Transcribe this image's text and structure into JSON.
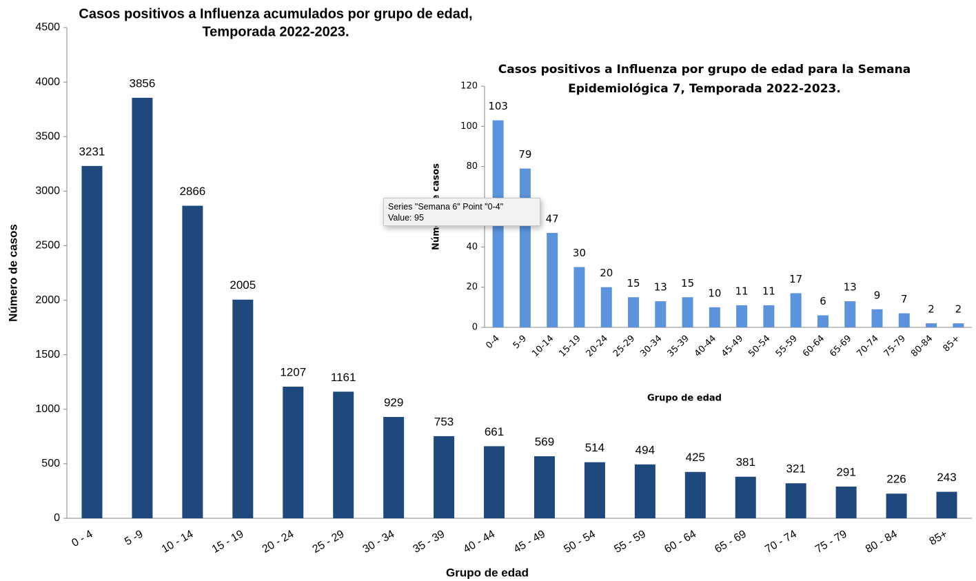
{
  "chart_data": [
    {
      "type": "bar",
      "title": [
        "Casos positivos a Influenza acumulados por grupo de edad,",
        "Temporada 2022-2023."
      ],
      "x_label": "Grupo de edad",
      "y_label": "Número de casos",
      "categories": [
        "0 - 4",
        "5 -9",
        "10 - 14",
        "15 - 19",
        "20 - 24",
        "25 - 29",
        "30 - 34",
        "35 - 39",
        "40 - 44",
        "45 - 49",
        "50 - 54",
        "55 - 59",
        "60 - 64",
        "65 - 69",
        "70 - 74",
        "75 - 79",
        "80 - 84",
        "85+"
      ],
      "values": [
        3231,
        3856,
        2866,
        2005,
        1207,
        1161,
        929,
        753,
        661,
        569,
        514,
        494,
        425,
        381,
        321,
        291,
        226,
        243
      ],
      "color": "#1f497d",
      "ylim": [
        0,
        4500
      ],
      "yticks": [
        0,
        500,
        1000,
        1500,
        2000,
        2500,
        3000,
        3500,
        4000,
        4500
      ]
    },
    {
      "type": "bar",
      "title": [
        "Casos positivos a Influenza por grupo de edad para la Semana",
        "Epidemiológica 7, Temporada 2022-2023."
      ],
      "x_label": "Grupo de edad",
      "y_label": "Número de casos",
      "categories": [
        "0-4",
        "5-9",
        "10-14",
        "15-19",
        "20-24",
        "25-29",
        "30-34",
        "35-39",
        "40-44",
        "45-49",
        "50-54",
        "55-59",
        "60-64",
        "65-69",
        "70-74",
        "75-79",
        "80-84",
        "85+"
      ],
      "values": [
        103,
        79,
        47,
        30,
        20,
        15,
        13,
        15,
        10,
        11,
        11,
        17,
        6,
        13,
        9,
        7,
        2,
        2
      ],
      "color": "#5b93dc",
      "ylim": [
        0,
        120
      ],
      "yticks": [
        0,
        20,
        40,
        60,
        80,
        100,
        120
      ]
    }
  ],
  "tooltip": {
    "title": "Series \"Semana 6\" Point \"0-4\"",
    "text": "Value: 95"
  }
}
